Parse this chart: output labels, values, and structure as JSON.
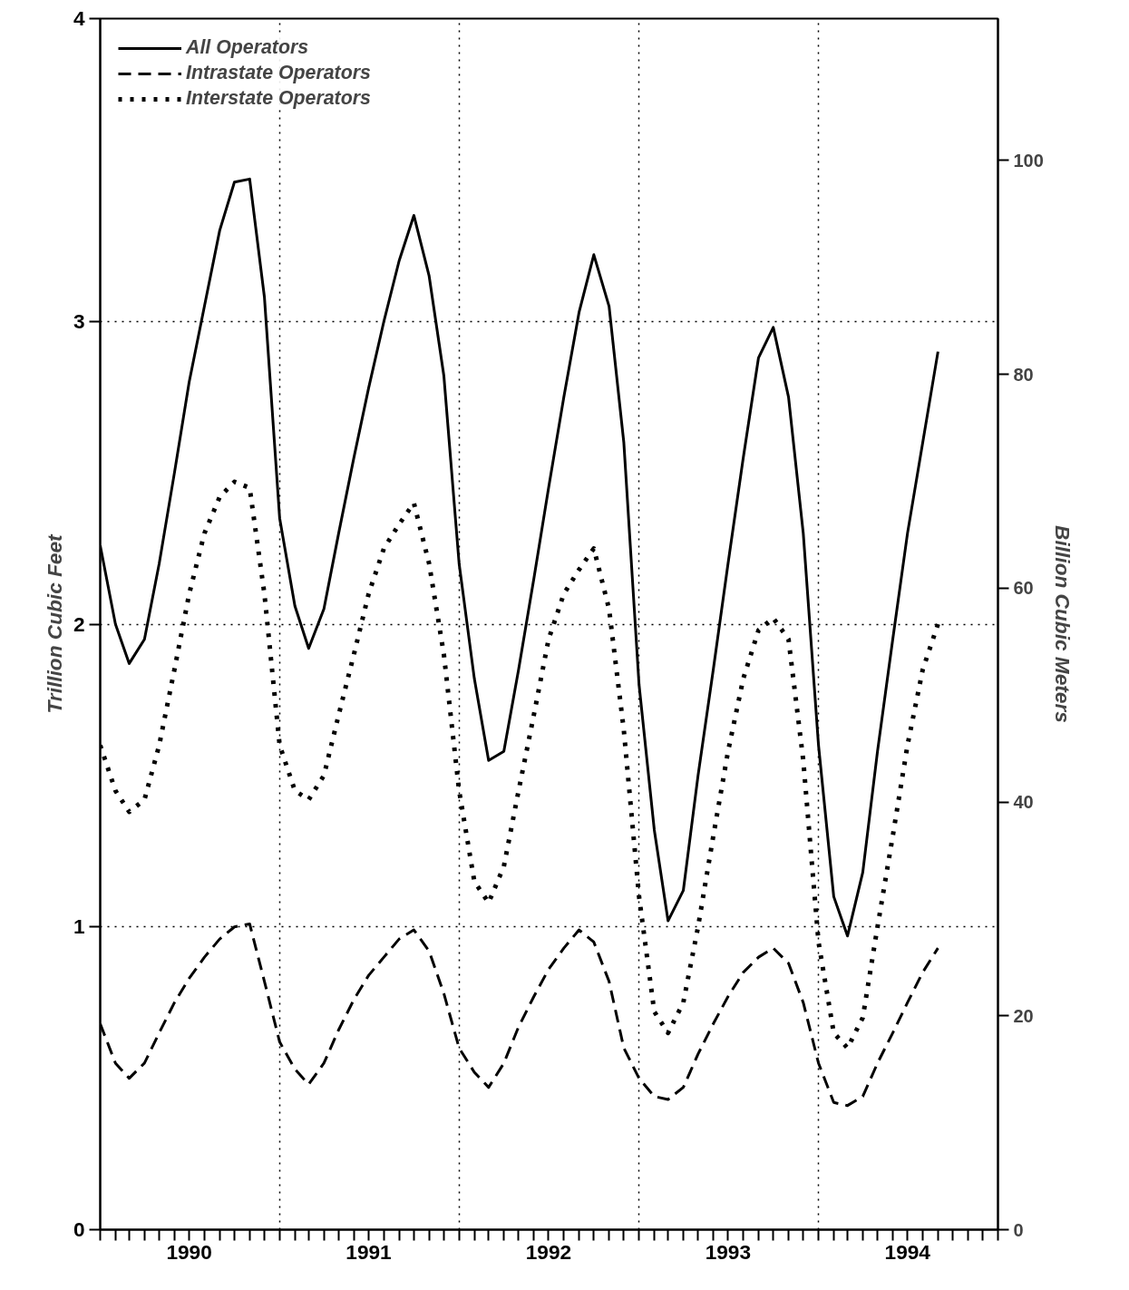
{
  "chart_data": {
    "type": "line",
    "ylabel": "Trillion Cubic Feet",
    "y2label": "Billion Cubic Meters",
    "x": [
      "1990-01",
      "1990-02",
      "1990-03",
      "1990-04",
      "1990-05",
      "1990-06",
      "1990-07",
      "1990-08",
      "1990-09",
      "1990-10",
      "1990-11",
      "1990-12",
      "1991-01",
      "1991-02",
      "1991-03",
      "1991-04",
      "1991-05",
      "1991-06",
      "1991-07",
      "1991-08",
      "1991-09",
      "1991-10",
      "1991-11",
      "1991-12",
      "1992-01",
      "1992-02",
      "1992-03",
      "1992-04",
      "1992-05",
      "1992-06",
      "1992-07",
      "1992-08",
      "1992-09",
      "1992-10",
      "1992-11",
      "1992-12",
      "1993-01",
      "1993-02",
      "1993-03",
      "1993-04",
      "1993-05",
      "1993-06",
      "1993-07",
      "1993-08",
      "1993-09",
      "1993-10",
      "1993-11",
      "1993-12",
      "1994-01",
      "1994-02",
      "1994-03",
      "1994-04",
      "1994-05",
      "1994-06",
      "1994-07",
      "1994-08",
      "1994-09"
    ],
    "series": [
      {
        "name": "All Operators",
        "color": "#000000",
        "line_style": "solid",
        "values": [
          2.26,
          2.0,
          1.87,
          1.95,
          2.2,
          2.5,
          2.8,
          3.05,
          3.3,
          3.46,
          3.47,
          3.08,
          2.35,
          2.06,
          1.92,
          2.05,
          2.3,
          2.55,
          2.78,
          3.0,
          3.2,
          3.35,
          3.15,
          2.82,
          2.2,
          1.82,
          1.55,
          1.58,
          1.85,
          2.15,
          2.45,
          2.75,
          3.03,
          3.22,
          3.05,
          2.6,
          1.8,
          1.32,
          1.02,
          1.12,
          1.5,
          1.85,
          2.2,
          2.55,
          2.88,
          2.98,
          2.75,
          2.3,
          1.6,
          1.1,
          0.97,
          1.18,
          1.58,
          1.95,
          2.3,
          2.6,
          2.9
        ]
      },
      {
        "name": "Intrastate Operators",
        "color": "#000000",
        "line_style": "dashed",
        "values": [
          0.68,
          0.55,
          0.5,
          0.55,
          0.65,
          0.75,
          0.83,
          0.9,
          0.96,
          1.0,
          1.01,
          0.82,
          0.62,
          0.53,
          0.48,
          0.55,
          0.66,
          0.76,
          0.84,
          0.9,
          0.96,
          0.99,
          0.92,
          0.78,
          0.6,
          0.52,
          0.47,
          0.55,
          0.67,
          0.77,
          0.86,
          0.93,
          0.99,
          0.95,
          0.82,
          0.6,
          0.5,
          0.44,
          0.43,
          0.47,
          0.58,
          0.68,
          0.77,
          0.85,
          0.9,
          0.93,
          0.88,
          0.75,
          0.55,
          0.42,
          0.41,
          0.44,
          0.55,
          0.65,
          0.75,
          0.85,
          0.93
        ]
      },
      {
        "name": "Interstate Operators",
        "color": "#000000",
        "line_style": "dotted",
        "values": [
          1.6,
          1.45,
          1.38,
          1.42,
          1.6,
          1.85,
          2.1,
          2.3,
          2.42,
          2.47,
          2.45,
          2.1,
          1.6,
          1.45,
          1.42,
          1.5,
          1.7,
          1.9,
          2.1,
          2.25,
          2.33,
          2.4,
          2.2,
          1.9,
          1.45,
          1.15,
          1.08,
          1.2,
          1.45,
          1.7,
          1.95,
          2.1,
          2.18,
          2.25,
          2.05,
          1.65,
          1.1,
          0.72,
          0.65,
          0.75,
          1.0,
          1.3,
          1.58,
          1.82,
          1.98,
          2.02,
          1.95,
          1.55,
          0.95,
          0.65,
          0.6,
          0.7,
          1.0,
          1.3,
          1.6,
          1.85,
          2.0
        ]
      }
    ],
    "xlim": [
      "1990-01-01",
      "1995-01-01"
    ],
    "xticks": [
      {
        "value": "1990-01-01",
        "label": null
      },
      {
        "value": "1990-02-01",
        "label": null
      },
      {
        "value": "1990-03-01",
        "label": null
      },
      {
        "value": "1990-04-01",
        "label": null
      },
      {
        "value": "1990-05-01",
        "label": null
      },
      {
        "value": "1990-06-01",
        "label": null
      },
      {
        "value": "1990-07-01",
        "label": "1990"
      },
      {
        "value": "1990-08-01",
        "label": null
      },
      {
        "value": "1990-09-01",
        "label": null
      },
      {
        "value": "1990-10-01",
        "label": null
      },
      {
        "value": "1990-11-01",
        "label": null
      },
      {
        "value": "1990-12-01",
        "label": null
      },
      {
        "value": "1991-01-01",
        "label": null
      },
      {
        "value": "1991-02-01",
        "label": null
      },
      {
        "value": "1991-03-01",
        "label": null
      },
      {
        "value": "1991-04-01",
        "label": null
      },
      {
        "value": "1991-05-01",
        "label": null
      },
      {
        "value": "1991-06-01",
        "label": null
      },
      {
        "value": "1991-07-01",
        "label": "1991"
      },
      {
        "value": "1991-08-01",
        "label": null
      },
      {
        "value": "1991-09-01",
        "label": null
      },
      {
        "value": "1991-10-01",
        "label": null
      },
      {
        "value": "1991-11-01",
        "label": null
      },
      {
        "value": "1991-12-01",
        "label": null
      },
      {
        "value": "1992-01-01",
        "label": null
      },
      {
        "value": "1992-02-01",
        "label": null
      },
      {
        "value": "1992-03-01",
        "label": null
      },
      {
        "value": "1992-04-01",
        "label": null
      },
      {
        "value": "1992-05-01",
        "label": null
      },
      {
        "value": "1992-06-01",
        "label": null
      },
      {
        "value": "1992-07-01",
        "label": "1992"
      },
      {
        "value": "1992-08-01",
        "label": null
      },
      {
        "value": "1992-09-01",
        "label": null
      },
      {
        "value": "1992-10-01",
        "label": null
      },
      {
        "value": "1992-11-01",
        "label": null
      },
      {
        "value": "1992-12-01",
        "label": null
      },
      {
        "value": "1993-01-01",
        "label": null
      },
      {
        "value": "1993-02-01",
        "label": null
      },
      {
        "value": "1993-03-01",
        "label": null
      },
      {
        "value": "1993-04-01",
        "label": null
      },
      {
        "value": "1993-05-01",
        "label": null
      },
      {
        "value": "1993-06-01",
        "label": null
      },
      {
        "value": "1993-07-01",
        "label": "1993"
      },
      {
        "value": "1993-08-01",
        "label": null
      },
      {
        "value": "1993-09-01",
        "label": null
      },
      {
        "value": "1993-10-01",
        "label": null
      },
      {
        "value": "1993-11-01",
        "label": null
      },
      {
        "value": "1993-12-01",
        "label": null
      },
      {
        "value": "1994-01-01",
        "label": null
      },
      {
        "value": "1994-02-01",
        "label": null
      },
      {
        "value": "1994-03-01",
        "label": null
      },
      {
        "value": "1994-04-01",
        "label": null
      },
      {
        "value": "1994-05-01",
        "label": null
      },
      {
        "value": "1994-06-01",
        "label": null
      },
      {
        "value": "1994-07-01",
        "label": "1994"
      },
      {
        "value": "1994-08-01",
        "label": null
      },
      {
        "value": "1994-09-01",
        "label": null
      },
      {
        "value": "1994-10-01",
        "label": null
      },
      {
        "value": "1994-11-01",
        "label": null
      },
      {
        "value": "1994-12-01",
        "label": null
      },
      {
        "value": "1995-01-01",
        "label": null
      }
    ],
    "ylim": [
      0,
      4
    ],
    "yticks": [
      0,
      1,
      2,
      3,
      4
    ],
    "y2lim": [
      0,
      113.27
    ],
    "y2ticks": [
      0,
      20,
      40,
      60,
      80,
      100
    ],
    "grid": true,
    "legend": "top left"
  }
}
